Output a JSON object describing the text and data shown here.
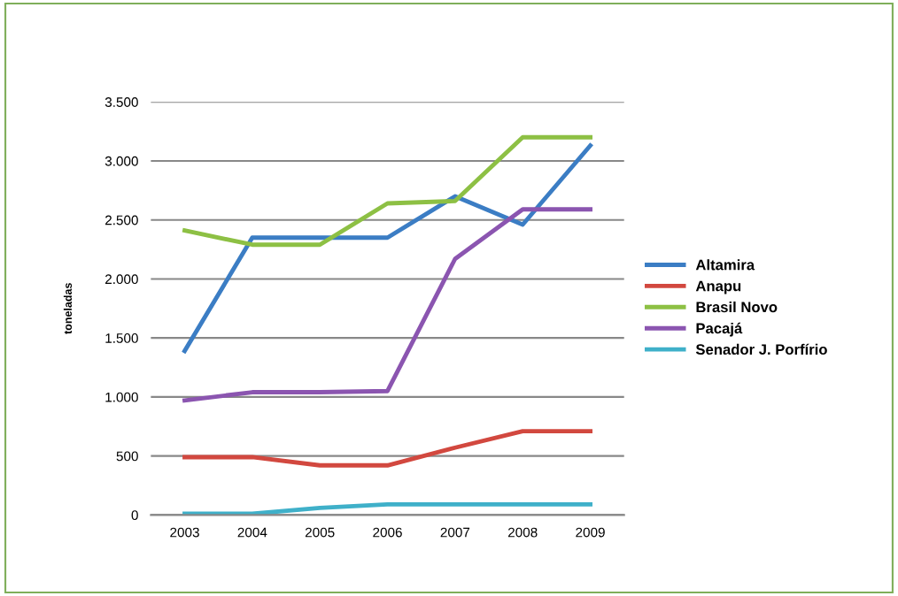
{
  "chart_data": {
    "type": "line",
    "ylabel": "toneladas",
    "categories": [
      "2003",
      "2004",
      "2005",
      "2006",
      "2007",
      "2008",
      "2009"
    ],
    "series": [
      {
        "name": "Altamira",
        "color": "#3b7dc4",
        "values": [
          1390,
          2350,
          2350,
          2350,
          2700,
          2460,
          3130
        ]
      },
      {
        "name": "Anapu",
        "color": "#d2483f",
        "values": [
          490,
          490,
          420,
          420,
          570,
          710,
          710
        ]
      },
      {
        "name": "Brasil Novo",
        "color": "#8dc044",
        "values": [
          2410,
          2290,
          2290,
          2640,
          2660,
          3200,
          3200
        ]
      },
      {
        "name": "Pacajá",
        "color": "#8b55b0",
        "values": [
          970,
          1040,
          1040,
          1050,
          2170,
          2590,
          2590
        ]
      },
      {
        "name": "Senador J. Porfírio",
        "color": "#3fb0c9",
        "values": [
          10,
          10,
          60,
          90,
          90,
          90,
          90
        ]
      }
    ],
    "ylim": [
      0,
      3500
    ],
    "yticks": [
      0,
      500,
      {
        "value": 1000,
        "label": "1.000"
      },
      {
        "value": 1500,
        "label": "1.500"
      },
      {
        "value": 2000,
        "label": "2.000"
      },
      {
        "value": 2500,
        "label": "2.500"
      },
      {
        "value": 3000,
        "label": "3.000"
      },
      {
        "value": 3500,
        "label": "3.500"
      }
    ],
    "grid": "y",
    "legend": "right",
    "marker": "none",
    "line_style": "solid"
  }
}
